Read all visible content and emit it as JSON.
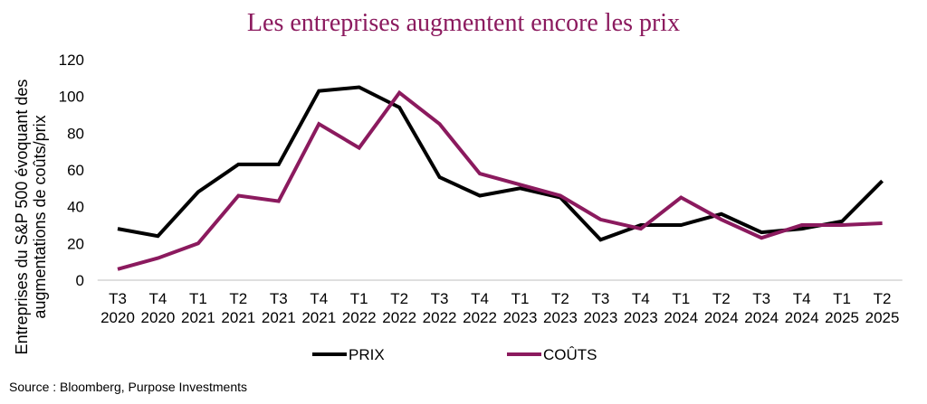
{
  "chart_data": {
    "type": "line",
    "title": "Les entreprises augmentent encore les prix",
    "ylabel": "Entreprises du S&P 500 évoquant des augmentations de coûts/prix",
    "xlabel": "",
    "ylim": [
      0,
      120
    ],
    "yticks": [
      0,
      20,
      40,
      60,
      80,
      100,
      120
    ],
    "grid": false,
    "legend_position": "bottom",
    "categories": [
      [
        "T3",
        "2020"
      ],
      [
        "T4",
        "2020"
      ],
      [
        "T1",
        "2021"
      ],
      [
        "T2",
        "2021"
      ],
      [
        "T3",
        "2021"
      ],
      [
        "T4",
        "2021"
      ],
      [
        "T1",
        "2022"
      ],
      [
        "T2",
        "2022"
      ],
      [
        "T3",
        "2022"
      ],
      [
        "T4",
        "2022"
      ],
      [
        "T1",
        "2023"
      ],
      [
        "T2",
        "2023"
      ],
      [
        "T3",
        "2023"
      ],
      [
        "T4",
        "2023"
      ],
      [
        "T1",
        "2024"
      ],
      [
        "T2",
        "2024"
      ],
      [
        "T3",
        "2024"
      ],
      [
        "T4",
        "2024"
      ],
      [
        "T1",
        "2025"
      ],
      [
        "T2",
        "2025"
      ]
    ],
    "series": [
      {
        "name": "PRIX",
        "color": "#000000",
        "values": [
          28,
          24,
          48,
          63,
          63,
          103,
          105,
          94,
          56,
          46,
          50,
          45,
          22,
          30,
          30,
          36,
          26,
          28,
          32,
          54
        ]
      },
      {
        "name": "COÛTS",
        "color": "#8b1a5e",
        "values": [
          6,
          12,
          20,
          46,
          43,
          85,
          72,
          102,
          85,
          58,
          52,
          46,
          33,
          28,
          45,
          33,
          23,
          30,
          30,
          31
        ]
      }
    ],
    "source": "Source : Bloomberg, Purpose Investments"
  }
}
